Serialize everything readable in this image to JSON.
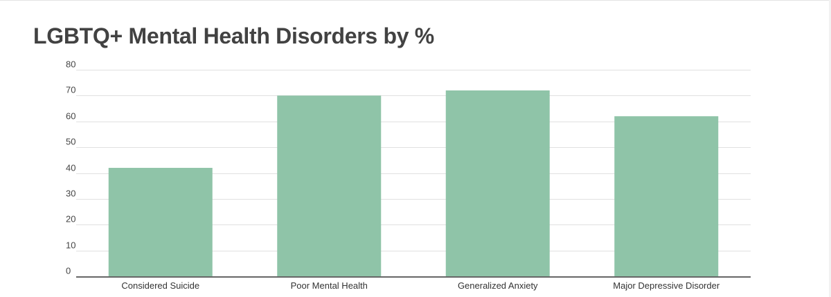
{
  "chart_data": {
    "type": "bar",
    "title": "LGBTQ+ Mental Health Disorders by %",
    "xlabel": "",
    "ylabel": "",
    "categories": [
      "Considered Suicide",
      "Poor Mental Health",
      "Generalized Anxiety",
      "Major Depressive Disorder"
    ],
    "values": [
      42,
      70,
      72,
      62
    ],
    "ylim": [
      0,
      80
    ],
    "yticks": [
      "0",
      "10",
      "20",
      "30",
      "40",
      "50",
      "60",
      "70",
      "80"
    ],
    "grid": true,
    "legend": "none",
    "bar_color": "#8fc4a8",
    "grid_color": "#e0e0e0",
    "axis_color": "#333333"
  }
}
